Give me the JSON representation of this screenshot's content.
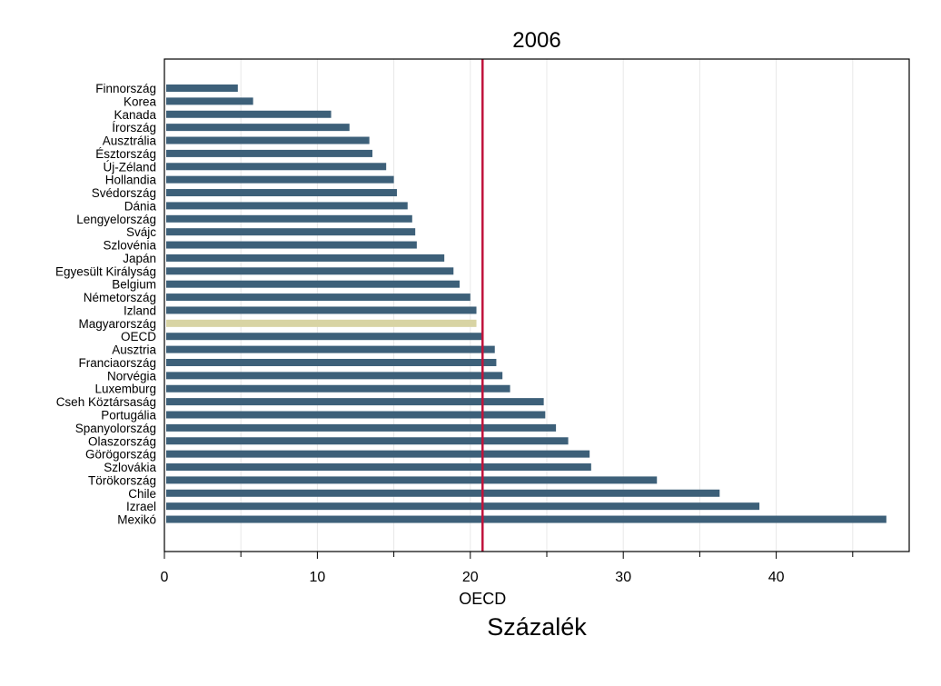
{
  "chart_data": {
    "type": "bar",
    "orientation": "horizontal",
    "title": "2006",
    "xlabel": "Százalék",
    "xlim": [
      0,
      48
    ],
    "xticks": [
      0,
      10,
      20,
      30,
      40
    ],
    "grid": true,
    "reference_line": {
      "value": 20.8,
      "label": "OECD",
      "color": "#c0143c"
    },
    "colors": {
      "bar": "#3d6079",
      "highlight": "#d8d4a4"
    },
    "highlight_category": "Magyarország",
    "categories": [
      "Finnország",
      "Korea",
      "Kanada",
      "Írország",
      "Ausztrália",
      "Észtország",
      "Új-Zéland",
      "Hollandia",
      "Svédország",
      "Dánia",
      "Lengyelország",
      "Svájc",
      "Szlovénia",
      "Japán",
      "Egyesült Királyság",
      "Belgium",
      "Németország",
      "Izland",
      "Magyarország",
      "OECD",
      "Ausztria",
      "Franciaország",
      "Norvégia",
      "Luxemburg",
      "Cseh Köztársaság",
      "Portugália",
      "Spanyolország",
      "Olaszország",
      "Görögország",
      "Szlovákia",
      "Törökország",
      "Chile",
      "Izrael",
      "Mexikó"
    ],
    "values": [
      4.8,
      5.8,
      10.9,
      12.1,
      13.4,
      13.6,
      14.5,
      15.0,
      15.2,
      15.9,
      16.2,
      16.4,
      16.5,
      18.3,
      18.9,
      19.3,
      20.0,
      20.4,
      20.4,
      20.8,
      21.6,
      21.7,
      22.1,
      22.6,
      24.8,
      24.9,
      25.6,
      26.4,
      27.8,
      27.9,
      32.2,
      36.3,
      38.9,
      47.2
    ]
  }
}
